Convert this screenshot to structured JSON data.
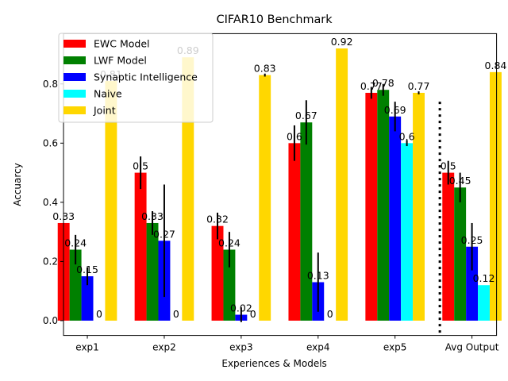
{
  "chart_data": {
    "type": "bar",
    "title": "CIFAR10 Benchmark",
    "xlabel": "Experiences & Models",
    "ylabel": "Accuarcy",
    "ylim": [
      -0.05,
      0.97
    ],
    "yticks": [
      "0.0",
      "0.2",
      "0.4",
      "0.6",
      "0.8"
    ],
    "ytick_values": [
      0,
      0.2,
      0.4,
      0.6,
      0.8
    ],
    "categories": [
      "exp1",
      "exp2",
      "exp3",
      "exp4",
      "exp5",
      "Avg Output"
    ],
    "legend_position": "top-left",
    "separator": {
      "style": "dotted",
      "between": [
        "exp5",
        "Avg Output"
      ]
    },
    "series": [
      {
        "name": "EWC Model",
        "color": "#ff0000",
        "values": [
          0.33,
          0.5,
          0.32,
          0.6,
          0.77,
          0.5
        ],
        "errors": [
          0.0,
          0.055,
          0.045,
          0.06,
          0.02,
          0.04
        ],
        "labels": [
          "0.33",
          "0.5",
          "0.32",
          "0.6",
          "0.77",
          "0.5"
        ]
      },
      {
        "name": "LWF Model",
        "color": "#008000",
        "values": [
          0.24,
          0.33,
          0.24,
          0.67,
          0.78,
          0.45
        ],
        "errors": [
          0.05,
          0.04,
          0.06,
          0.075,
          0.02,
          0.05
        ],
        "labels": [
          "0.24",
          "0.33",
          "0.24",
          "0.67",
          "0.78",
          "0.45"
        ]
      },
      {
        "name": "Synaptic Intelligence",
        "color": "#0000ff",
        "values": [
          0.15,
          0.27,
          0.02,
          0.13,
          0.69,
          0.25
        ],
        "errors": [
          0.03,
          0.19,
          0.025,
          0.1,
          0.05,
          0.08
        ],
        "labels": [
          "0.15",
          "0.27",
          "0.02",
          "0.13",
          "0.69",
          "0.25"
        ]
      },
      {
        "name": "Naive",
        "color": "#00ffff",
        "values": [
          0,
          0,
          0,
          0,
          0.6,
          0.12
        ],
        "errors": [
          0,
          0,
          0,
          0,
          0.01,
          0
        ],
        "labels": [
          "0",
          "0",
          "0",
          "0",
          "0.6",
          "0.12"
        ]
      },
      {
        "name": "Joint",
        "color": "#ffd700",
        "values": [
          0.81,
          0.89,
          0.83,
          0.92,
          0.77,
          0.84
        ],
        "errors": [
          0,
          0,
          0.005,
          0,
          0.005,
          0
        ],
        "labels": [
          "0.81",
          "0.89",
          "0.83",
          "0.92",
          "0.77",
          "0.84"
        ]
      }
    ]
  }
}
